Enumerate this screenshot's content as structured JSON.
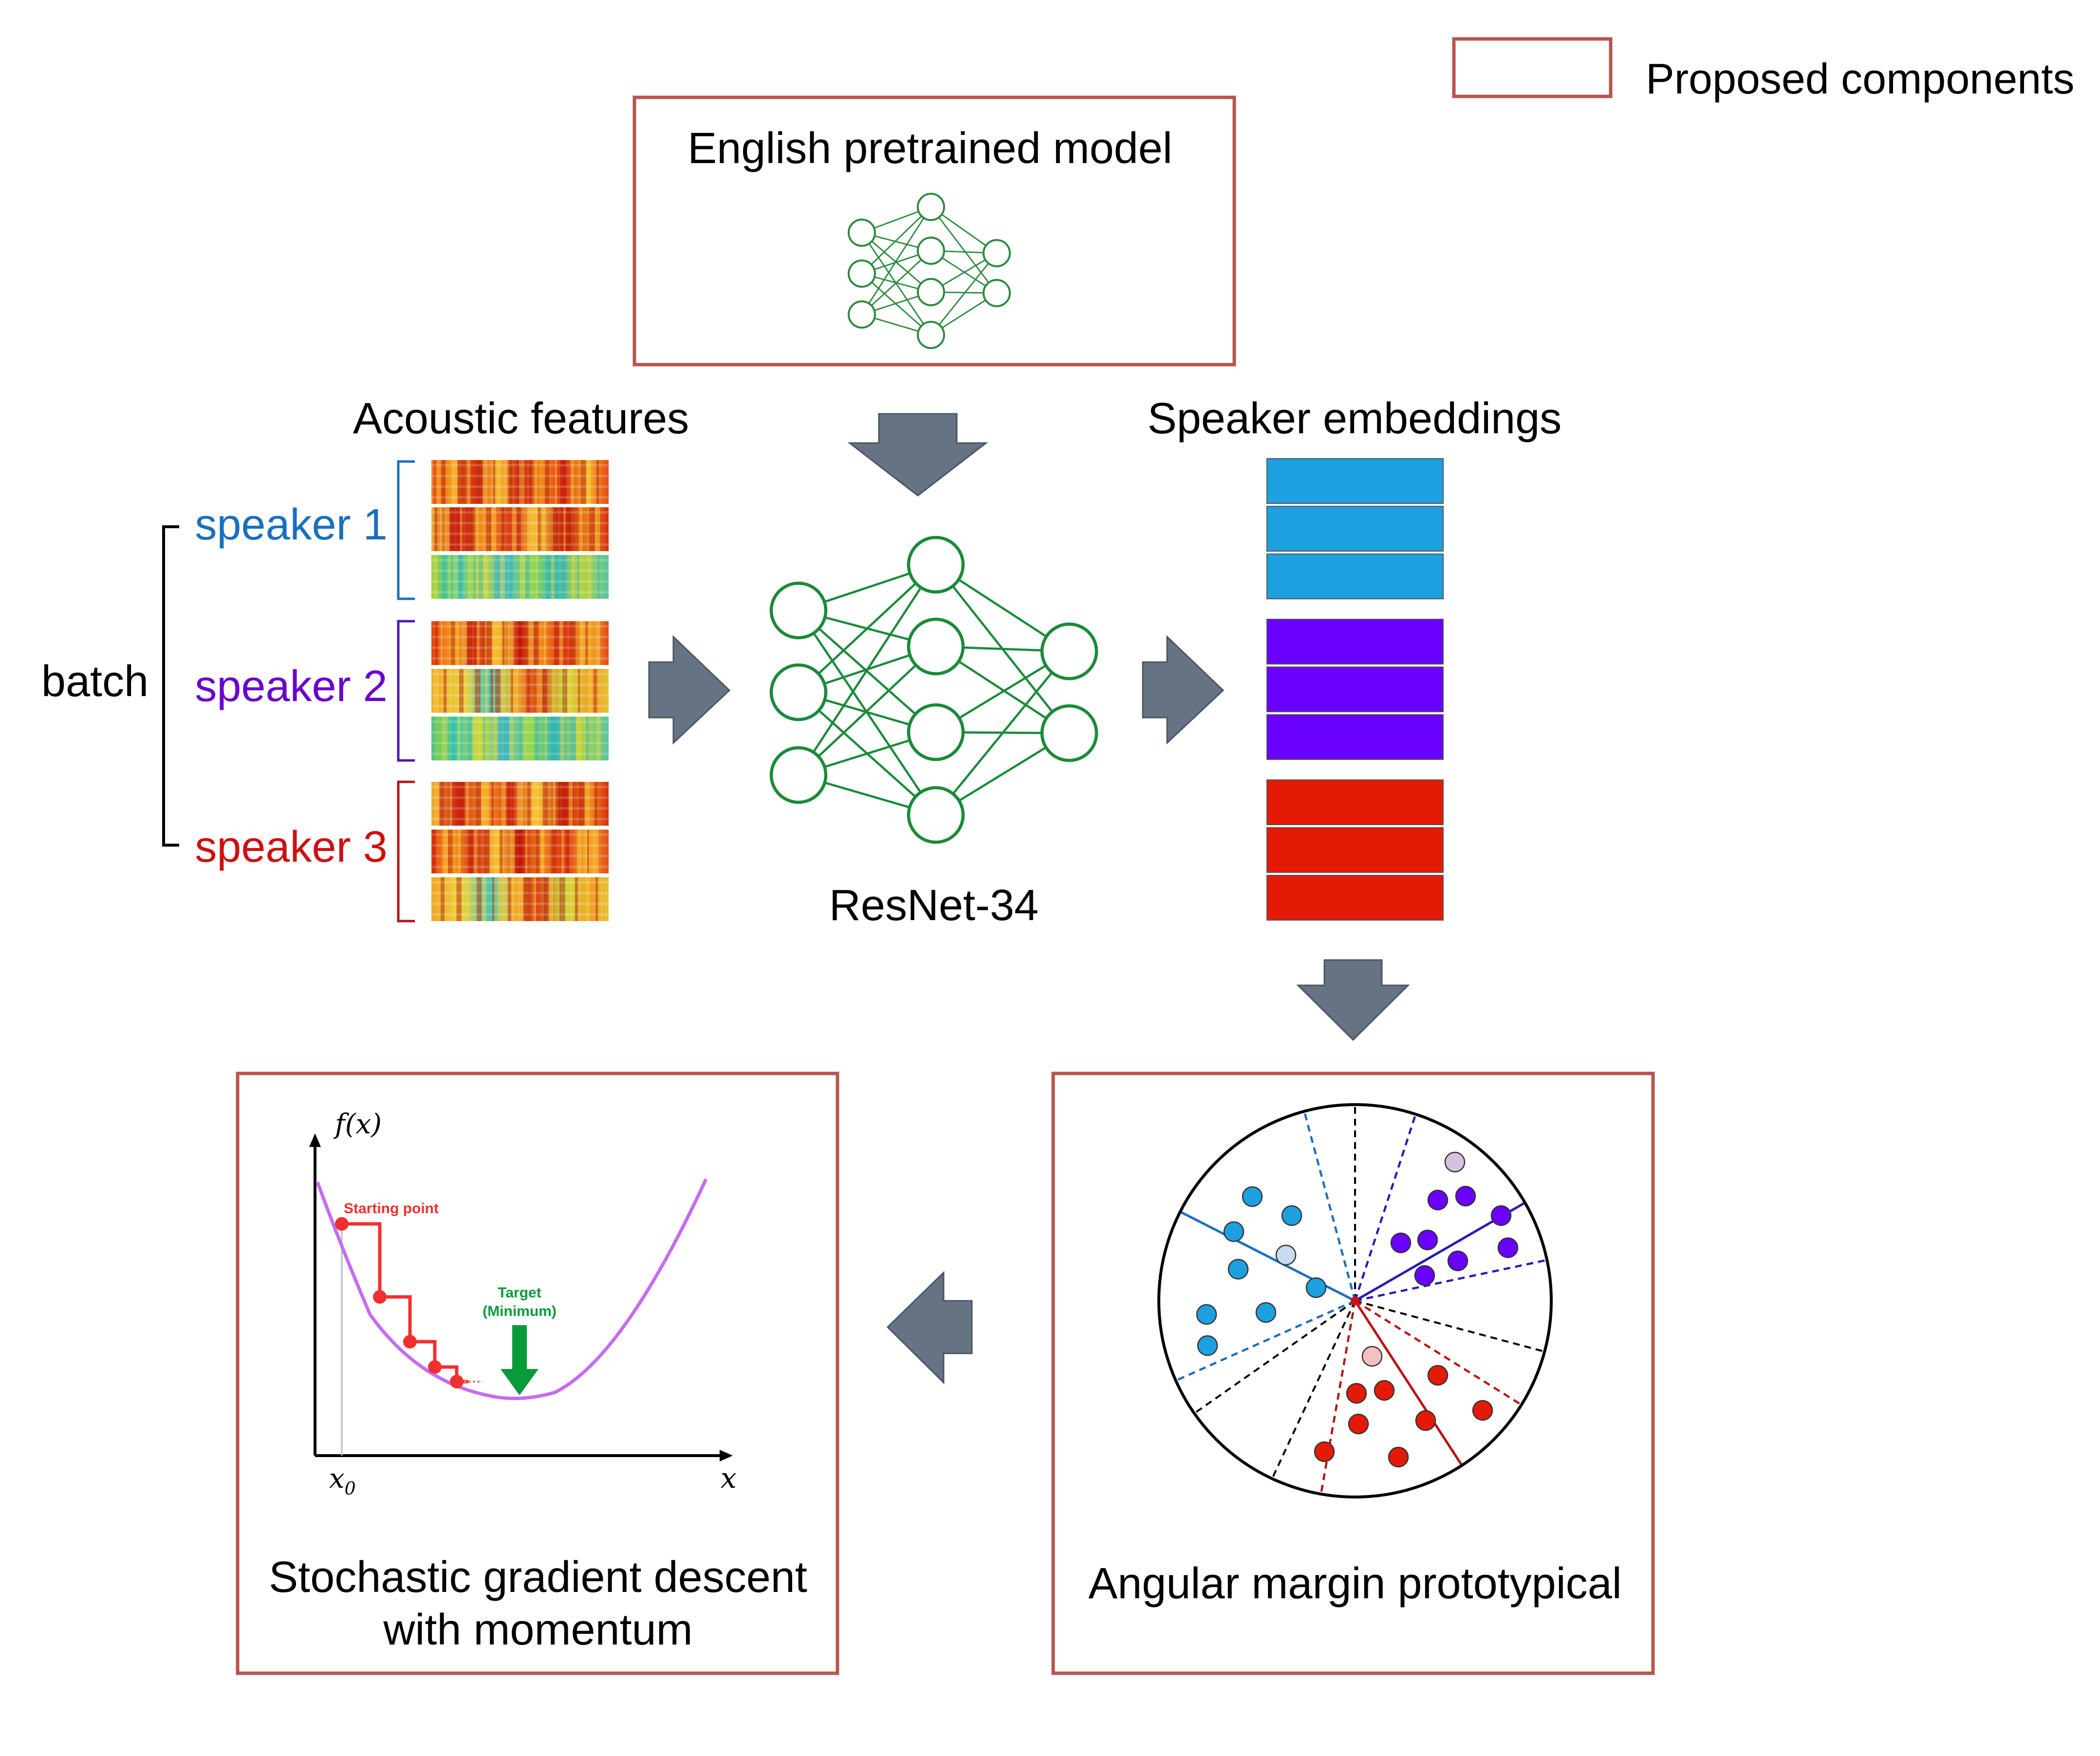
{
  "legend": {
    "label": "Proposed components",
    "color": "#b85450"
  },
  "pretrained": {
    "title": "English pretrained model",
    "color": "#2a8a3e"
  },
  "acoustic": {
    "title": "Acoustic features"
  },
  "embeddings": {
    "title": "Speaker embeddings"
  },
  "batch": {
    "label": "batch"
  },
  "speakers": [
    {
      "label": "speaker 1",
      "color": "#1a6fbf",
      "embedding_color": "#1ca0e0"
    },
    {
      "label": "speaker 2",
      "color": "#6a00cc",
      "embedding_color": "#6a00ff"
    },
    {
      "label": "speaker 3",
      "color": "#cc1111",
      "embedding_color": "#e41a07"
    }
  ],
  "network": {
    "label": "ResNet-34",
    "color": "#1a8a3a"
  },
  "arrow_color": "#657382",
  "sgd": {
    "title_line1": "Stochastic gradient descent",
    "title_line2": "with momentum",
    "y_axis": "f(x)",
    "x_axis": "x",
    "x0_main": "x",
    "x0_sub": "0",
    "start_label": "Starting point",
    "target_line1": "Target",
    "target_line2": "(Minimum)",
    "curve_color": "#c66cf0",
    "step_color": "#f03030",
    "target_color": "#0a9a3a"
  },
  "angular": {
    "title": "Angular margin prototypical"
  }
}
